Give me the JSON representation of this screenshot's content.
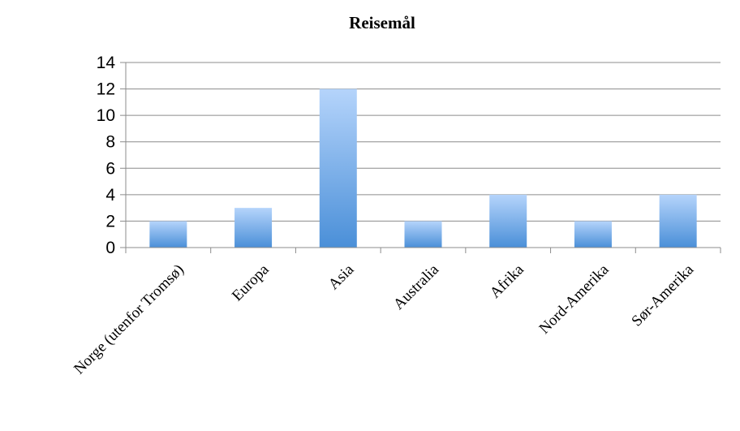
{
  "chart_data": {
    "type": "bar",
    "title": "Reisemål",
    "xlabel": "",
    "ylabel": "",
    "categories": [
      "Norge (utenfor Tromsø)",
      "Europa",
      "Asia",
      "Australia",
      "Afrika",
      "Nord-Amerika",
      "Sør-Amerika"
    ],
    "values": [
      2,
      3,
      12,
      2,
      4,
      2,
      4
    ],
    "ylim": [
      0,
      14
    ],
    "yticks": [
      0,
      2,
      4,
      6,
      8,
      10,
      12,
      14
    ],
    "grid": true,
    "legend": "none",
    "colors": {
      "bar_top": "#b5d4fb",
      "bar_bottom": "#4a8fd8",
      "grid": "#8c8c8c",
      "axis": "#8c8c8c"
    }
  }
}
